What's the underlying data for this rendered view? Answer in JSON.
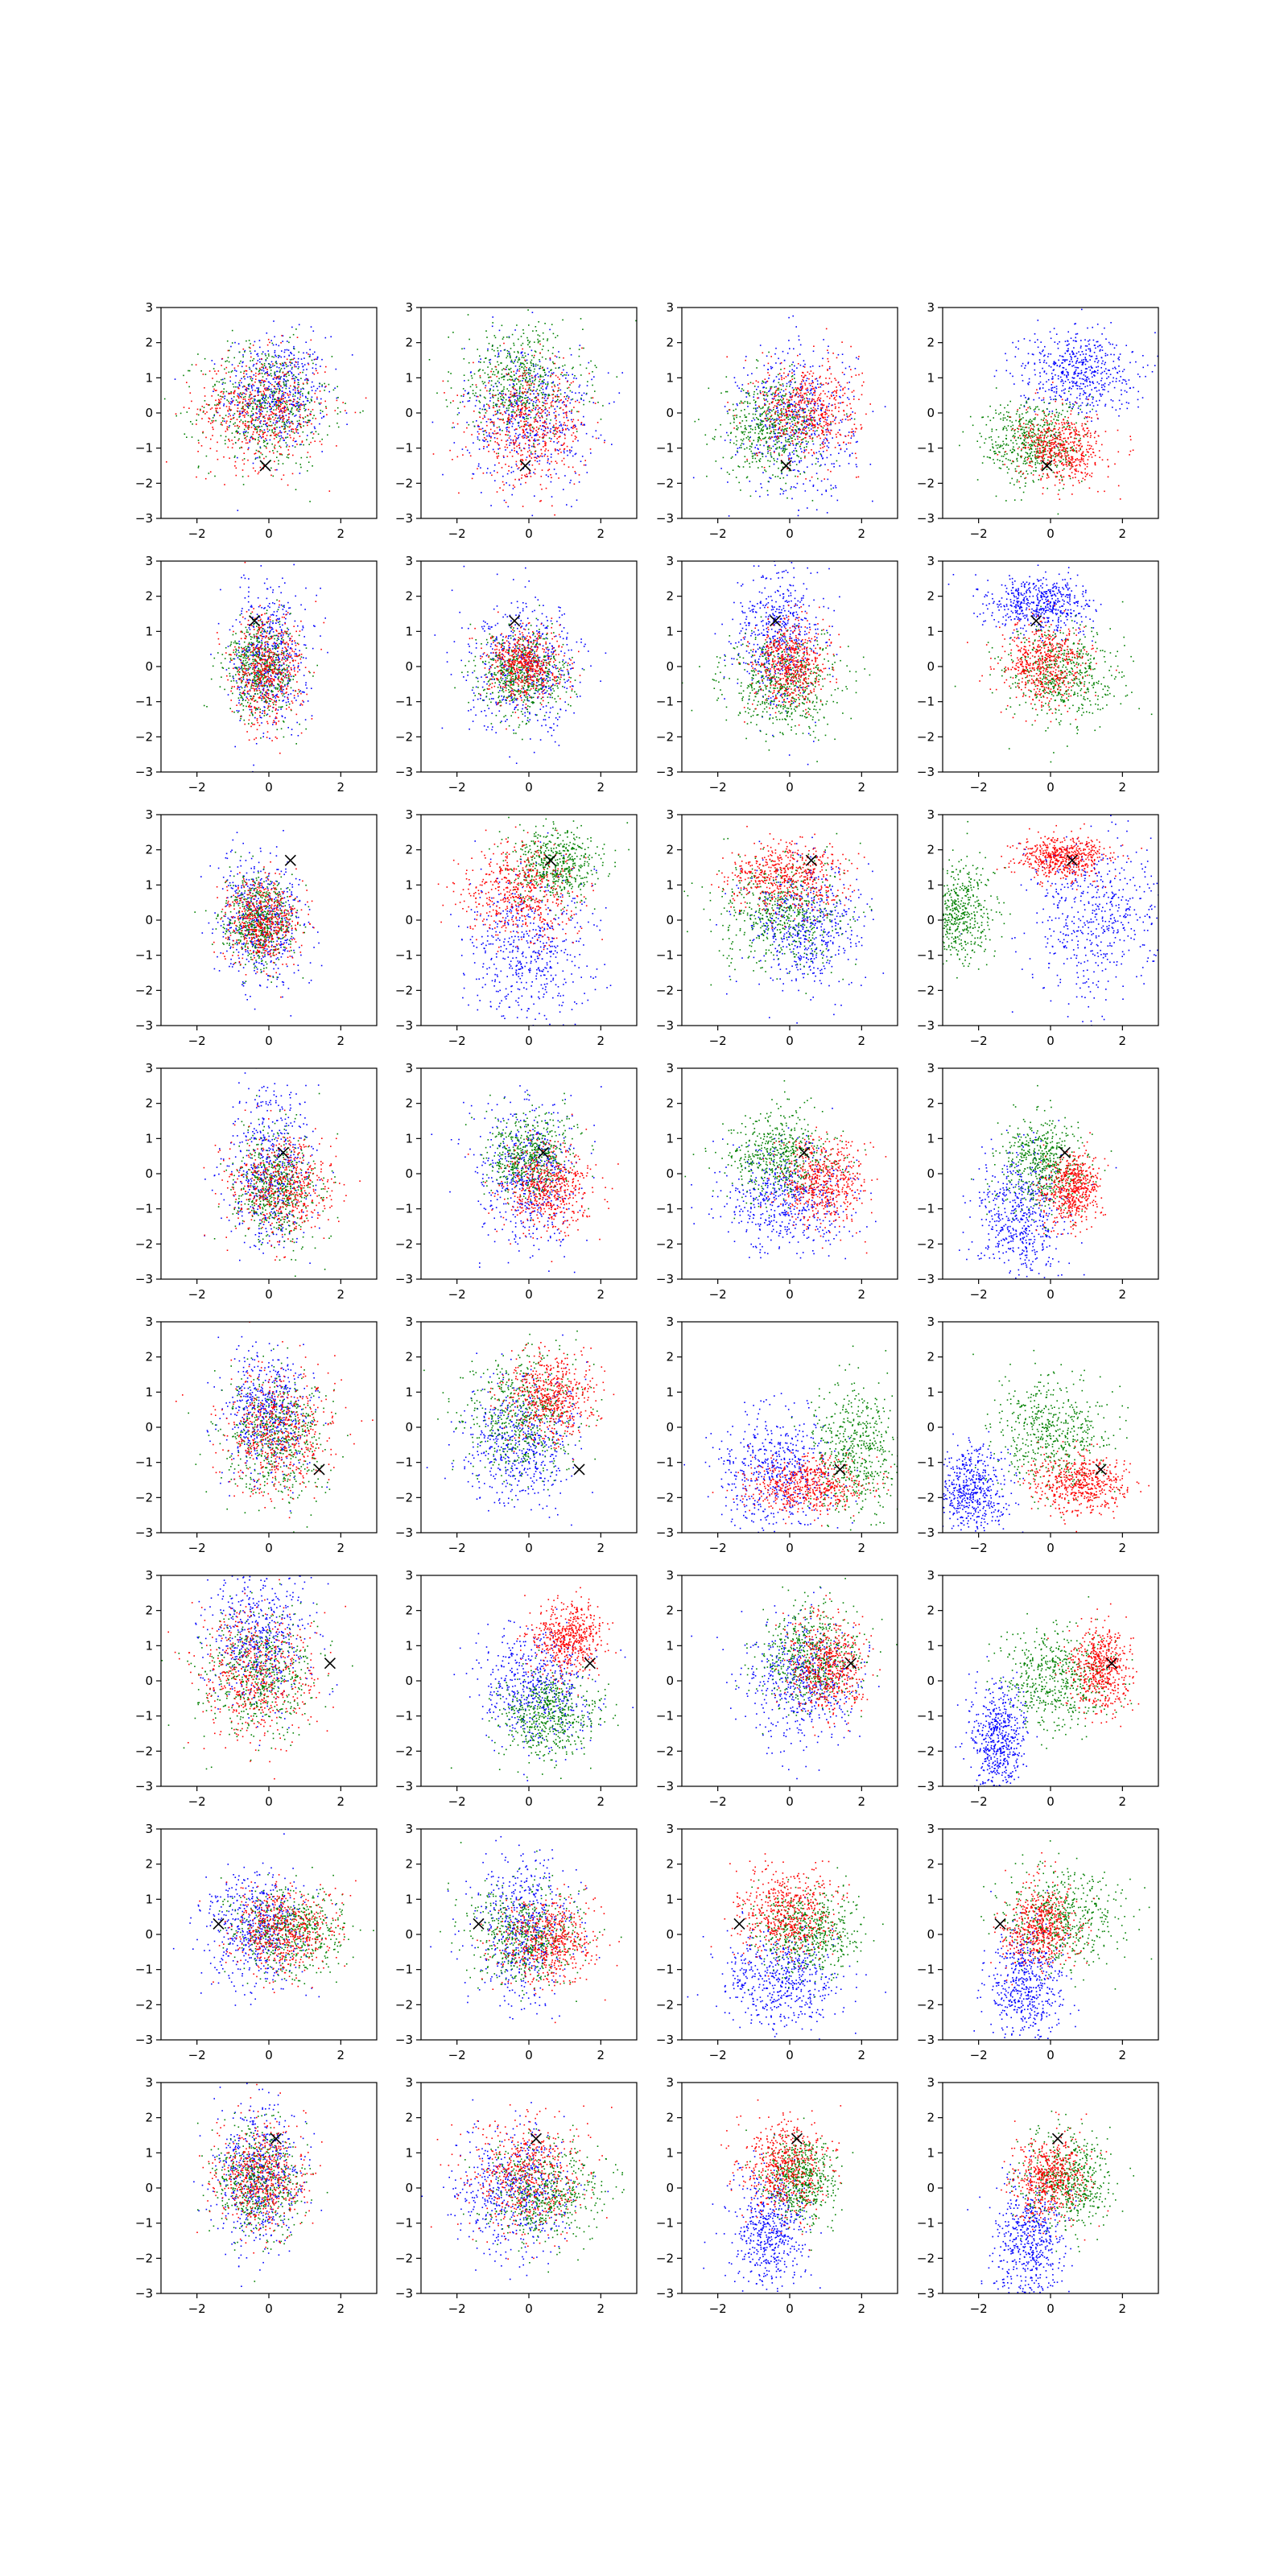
{
  "chart_data": {
    "type": "scatter",
    "grid_layout": {
      "rows": 8,
      "cols": 4
    },
    "xlim": [
      -3,
      3
    ],
    "ylim": [
      -3,
      3
    ],
    "xticks": [
      -2,
      0,
      2
    ],
    "yticks": [
      -3,
      -2,
      -1,
      0,
      1,
      2,
      3
    ],
    "xtick_labels": [
      "−2",
      "0",
      "2"
    ],
    "ytick_labels": [
      "−3",
      "−2",
      "−1",
      "0",
      "1",
      "2",
      "3"
    ],
    "grid": false,
    "legend": "none",
    "series_colors": [
      "#0000ff",
      "#008000",
      "#ff0000"
    ],
    "marker_color": "#000000",
    "marker": "x",
    "rows": [
      {
        "marker": [
          -0.1,
          -1.5
        ],
        "panels": [
          [
            [
              0.2,
              0.6,
              0.7,
              0.8
            ],
            [
              -0.1,
              0.2,
              0.9,
              0.9
            ],
            [
              -0.2,
              0.1,
              0.9,
              0.8
            ]
          ],
          [
            [
              0.0,
              0.0,
              0.9,
              1.0
            ],
            [
              -0.3,
              0.9,
              0.9,
              0.8
            ],
            [
              0.0,
              -0.4,
              0.8,
              0.8
            ]
          ],
          [
            [
              0.2,
              -0.2,
              0.8,
              1.1
            ],
            [
              -0.5,
              -0.4,
              0.7,
              0.7
            ],
            [
              0.5,
              0.1,
              0.7,
              0.7
            ]
          ],
          [
            [
              0.7,
              1.2,
              0.8,
              0.6
            ],
            [
              -0.5,
              -0.8,
              0.7,
              0.6
            ],
            [
              0.3,
              -1.0,
              0.6,
              0.5
            ]
          ]
        ]
      },
      {
        "marker": [
          -0.4,
          1.3
        ],
        "panels": [
          [
            [
              0.0,
              0.3,
              0.5,
              1.0
            ],
            [
              -0.2,
              0.0,
              0.5,
              0.7
            ],
            [
              -0.1,
              -0.1,
              0.5,
              0.8
            ]
          ],
          [
            [
              -0.1,
              0.0,
              0.8,
              0.9
            ],
            [
              -0.2,
              -0.2,
              0.6,
              0.6
            ],
            [
              -0.1,
              0.1,
              0.5,
              0.5
            ]
          ],
          [
            [
              -0.3,
              0.9,
              0.6,
              1.0
            ],
            [
              -0.2,
              -0.5,
              0.8,
              0.7
            ],
            [
              0.0,
              0.1,
              0.5,
              0.6
            ]
          ],
          [
            [
              -0.3,
              1.8,
              0.7,
              0.4
            ],
            [
              0.3,
              -0.3,
              0.8,
              0.7
            ],
            [
              -0.2,
              0.1,
              0.6,
              0.6
            ]
          ]
        ]
      },
      {
        "marker": [
          0.6,
          1.7
        ],
        "panels": [
          [
            [
              -0.2,
              0.0,
              0.6,
              0.9
            ],
            [
              -0.3,
              0.0,
              0.5,
              0.6
            ],
            [
              -0.2,
              0.0,
              0.5,
              0.6
            ]
          ],
          [
            [
              0.0,
              -0.8,
              0.9,
              1.1
            ],
            [
              0.7,
              1.6,
              0.6,
              0.5
            ],
            [
              -0.3,
              0.8,
              0.8,
              0.7
            ]
          ],
          [
            [
              0.4,
              -0.1,
              0.8,
              0.9
            ],
            [
              -0.3,
              0.2,
              0.9,
              0.8
            ],
            [
              -0.1,
              1.2,
              0.8,
              0.5
            ]
          ],
          [
            [
              1.2,
              0.0,
              0.9,
              1.2
            ],
            [
              -2.6,
              0.2,
              0.5,
              0.7
            ],
            [
              0.3,
              1.8,
              0.6,
              0.3
            ]
          ]
        ]
      },
      {
        "marker": [
          0.4,
          0.6
        ],
        "panels": [
          [
            [
              0.0,
              0.2,
              0.6,
              1.1
            ],
            [
              0.2,
              -0.4,
              0.6,
              0.8
            ],
            [
              0.3,
              -0.3,
              0.7,
              0.7
            ]
          ],
          [
            [
              0.0,
              0.0,
              0.7,
              1.0
            ],
            [
              0.0,
              0.5,
              0.6,
              0.6
            ],
            [
              0.5,
              -0.4,
              0.6,
              0.6
            ]
          ],
          [
            [
              -0.1,
              -0.7,
              0.9,
              0.8
            ],
            [
              -0.3,
              0.5,
              0.7,
              0.6
            ],
            [
              0.9,
              -0.3,
              0.6,
              0.6
            ]
          ],
          [
            [
              -0.8,
              -1.2,
              0.6,
              0.9
            ],
            [
              -0.2,
              0.3,
              0.6,
              0.7
            ],
            [
              0.6,
              -0.4,
              0.4,
              0.5
            ]
          ]
        ]
      },
      {
        "marker": [
          1.4,
          -1.2
        ],
        "panels": [
          [
            [
              -0.1,
              0.4,
              0.6,
              0.9
            ],
            [
              0.2,
              -0.2,
              0.7,
              0.9
            ],
            [
              0.3,
              -0.1,
              0.8,
              0.9
            ]
          ],
          [
            [
              -0.3,
              -0.5,
              0.8,
              0.9
            ],
            [
              -0.2,
              0.4,
              0.8,
              0.9
            ],
            [
              0.6,
              0.9,
              0.6,
              0.6
            ]
          ],
          [
            [
              -0.4,
              -1.2,
              0.8,
              0.8
            ],
            [
              1.8,
              -0.6,
              0.6,
              0.9
            ],
            [
              0.5,
              -1.6,
              0.8,
              0.4
            ]
          ],
          [
            [
              -2.2,
              -1.8,
              0.5,
              0.6
            ],
            [
              0.0,
              -0.2,
              0.8,
              0.8
            ],
            [
              0.8,
              -1.6,
              0.7,
              0.4
            ]
          ]
        ]
      },
      {
        "marker": [
          1.7,
          0.5
        ],
        "panels": [
          [
            [
              -0.3,
              1.2,
              0.7,
              0.9
            ],
            [
              -0.3,
              0.1,
              0.8,
              0.9
            ],
            [
              -0.4,
              0.2,
              0.8,
              0.9
            ]
          ],
          [
            [
              0.2,
              -0.2,
              0.8,
              0.9
            ],
            [
              0.5,
              -1.0,
              0.7,
              0.6
            ],
            [
              1.1,
              1.2,
              0.5,
              0.5
            ]
          ],
          [
            [
              0.3,
              0.0,
              0.8,
              0.9
            ],
            [
              0.6,
              0.7,
              0.7,
              0.7
            ],
            [
              1.0,
              0.4,
              0.5,
              0.7
            ]
          ],
          [
            [
              -1.5,
              -1.7,
              0.4,
              0.8
            ],
            [
              0.2,
              0.1,
              0.7,
              0.7
            ],
            [
              1.4,
              0.3,
              0.4,
              0.6
            ]
          ]
        ]
      },
      {
        "marker": [
          -1.4,
          0.3
        ],
        "panels": [
          [
            [
              -0.4,
              0.2,
              0.7,
              0.8
            ],
            [
              0.5,
              0.1,
              0.8,
              0.6
            ],
            [
              0.4,
              0.1,
              0.7,
              0.6
            ]
          ],
          [
            [
              -0.1,
              0.2,
              0.7,
              1.0
            ],
            [
              -0.2,
              0.0,
              0.8,
              0.7
            ],
            [
              0.5,
              -0.2,
              0.7,
              0.6
            ]
          ],
          [
            [
              -0.3,
              -1.3,
              0.8,
              0.7
            ],
            [
              0.5,
              0.1,
              0.7,
              0.6
            ],
            [
              -0.1,
              0.6,
              0.7,
              0.6
            ]
          ],
          [
            [
              -0.7,
              -1.4,
              0.5,
              0.8
            ],
            [
              0.3,
              0.5,
              0.8,
              0.7
            ],
            [
              -0.3,
              0.2,
              0.5,
              0.6
            ]
          ]
        ]
      },
      {
        "marker": [
          0.2,
          1.4
        ],
        "panels": [
          [
            [
              -0.3,
              0.4,
              0.6,
              1.0
            ],
            [
              -0.3,
              0.2,
              0.6,
              0.8
            ],
            [
              -0.3,
              0.3,
              0.6,
              0.8
            ]
          ],
          [
            [
              -0.4,
              -0.1,
              0.8,
              0.9
            ],
            [
              0.4,
              -0.1,
              0.8,
              0.7
            ],
            [
              -0.1,
              0.4,
              0.8,
              0.8
            ]
          ],
          [
            [
              -0.6,
              -1.2,
              0.5,
              0.9
            ],
            [
              0.3,
              0.3,
              0.5,
              0.6
            ],
            [
              -0.2,
              0.6,
              0.6,
              0.7
            ]
          ],
          [
            [
              -0.6,
              -1.5,
              0.5,
              0.9
            ],
            [
              0.5,
              0.2,
              0.6,
              0.7
            ],
            [
              0.0,
              0.3,
              0.5,
              0.6
            ]
          ]
        ]
      }
    ]
  }
}
